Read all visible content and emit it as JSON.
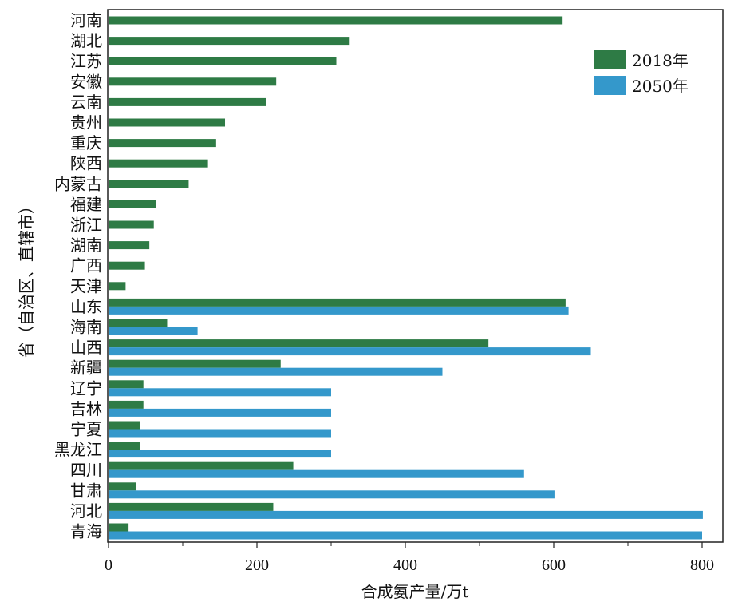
{
  "chart_data": {
    "type": "bar",
    "orientation": "horizontal",
    "categories": [
      "河南",
      "湖北",
      "江苏",
      "安徽",
      "云南",
      "贵州",
      "重庆",
      "陕西",
      "内蒙古",
      "福建",
      "浙江",
      "湖南",
      "广西",
      "天津",
      "山东",
      "海南",
      "山西",
      "新疆",
      "辽宁",
      "吉林",
      "宁夏",
      "黑龙江",
      "四川",
      "甘肃",
      "河北",
      "青海"
    ],
    "series": [
      {
        "name": "2018年",
        "color": "#2e7b45",
        "values": [
          612,
          325,
          307,
          226,
          212,
          157,
          145,
          134,
          108,
          64,
          61,
          55,
          49,
          23,
          616,
          79,
          512,
          232,
          47,
          47,
          42,
          42,
          249,
          37,
          222,
          27
        ]
      },
      {
        "name": "2050年",
        "color": "#3498cb",
        "values": [
          null,
          null,
          null,
          null,
          null,
          null,
          null,
          null,
          null,
          null,
          null,
          null,
          null,
          null,
          620,
          120,
          650,
          450,
          300,
          300,
          300,
          300,
          560,
          601,
          801,
          800
        ]
      }
    ],
    "xlabel": "合成氨产量/万t",
    "ylabel": "省（自治区、直辖市）",
    "xlim": [
      0,
      830
    ],
    "xticks": [
      0,
      200,
      400,
      600,
      800
    ],
    "xticks_minor": [
      100,
      300,
      500,
      700
    ],
    "grid": false,
    "legend_position": "top-right"
  }
}
